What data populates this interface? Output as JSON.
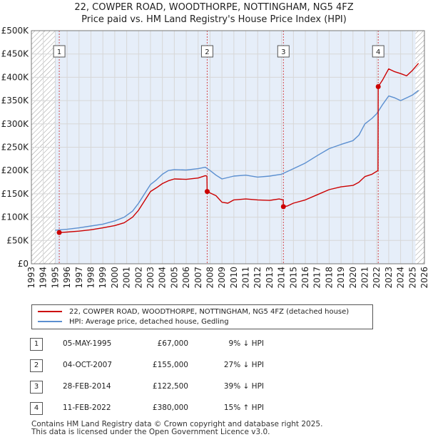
{
  "chart_data": {
    "type": "line",
    "title": [
      "22, COWPER ROAD, WOODTHORPE, NOTTINGHAM, NG5 4FZ",
      "Price paid vs. HM Land Registry's House Price Index (HPI)"
    ],
    "xlim": [
      1993,
      2026
    ],
    "ylim": [
      0,
      500000
    ],
    "x_ticks": [
      "1993",
      "1994",
      "1995",
      "1996",
      "1997",
      "1998",
      "1999",
      "2000",
      "2001",
      "2002",
      "2003",
      "2004",
      "2005",
      "2006",
      "2007",
      "2008",
      "2009",
      "2010",
      "2011",
      "2012",
      "2013",
      "2014",
      "2015",
      "2016",
      "2017",
      "2018",
      "2019",
      "2020",
      "2021",
      "2022",
      "2023",
      "2024",
      "2025",
      "2026"
    ],
    "y_ticks": [
      {
        "value": 0,
        "label": "£0"
      },
      {
        "value": 50000,
        "label": "£50K"
      },
      {
        "value": 100000,
        "label": "£100K"
      },
      {
        "value": 150000,
        "label": "£150K"
      },
      {
        "value": 200000,
        "label": "£200K"
      },
      {
        "value": 250000,
        "label": "£250K"
      },
      {
        "value": 300000,
        "label": "£300K"
      },
      {
        "value": 350000,
        "label": "£350K"
      },
      {
        "value": 400000,
        "label": "£400K"
      },
      {
        "value": 450000,
        "label": "£450K"
      },
      {
        "value": 500000,
        "label": "£500K"
      }
    ],
    "grid": true,
    "hatched_ranges": [
      [
        1993,
        1995.0
      ],
      [
        2025.25,
        2026
      ]
    ],
    "shaded_range": [
      1995.0,
      2025.25
    ],
    "series": [
      {
        "name": "22, COWPER ROAD, WOODTHORPE, NOTTINGHAM, NG5 4FZ (detached house)",
        "color": "#cc0000",
        "points": [
          [
            1995.34,
            67000
          ],
          [
            1996.0,
            68000
          ],
          [
            1997.0,
            70000
          ],
          [
            1998.0,
            73000
          ],
          [
            1999.0,
            77000
          ],
          [
            2000.0,
            82000
          ],
          [
            2000.8,
            88000
          ],
          [
            2001.5,
            100000
          ],
          [
            2002.0,
            115000
          ],
          [
            2002.5,
            135000
          ],
          [
            2003.0,
            155000
          ],
          [
            2003.5,
            163000
          ],
          [
            2004.0,
            172000
          ],
          [
            2004.5,
            178000
          ],
          [
            2005.0,
            182000
          ],
          [
            2006.0,
            181000
          ],
          [
            2007.0,
            184000
          ],
          [
            2007.6,
            189000
          ],
          [
            2007.74,
            188000
          ],
          [
            2007.76,
            155000
          ],
          [
            2008.0,
            152000
          ],
          [
            2008.5,
            146000
          ],
          [
            2009.0,
            132000
          ],
          [
            2009.5,
            130000
          ],
          [
            2010.0,
            137000
          ],
          [
            2011.0,
            139000
          ],
          [
            2012.0,
            137000
          ],
          [
            2013.0,
            136000
          ],
          [
            2013.8,
            139000
          ],
          [
            2014.14,
            137000
          ],
          [
            2014.16,
            122500
          ],
          [
            2014.5,
            124000
          ],
          [
            2015.0,
            130000
          ],
          [
            2016.0,
            137000
          ],
          [
            2017.0,
            148000
          ],
          [
            2018.0,
            159000
          ],
          [
            2019.0,
            165000
          ],
          [
            2020.0,
            168000
          ],
          [
            2020.5,
            175000
          ],
          [
            2021.0,
            187000
          ],
          [
            2021.6,
            192000
          ],
          [
            2022.1,
            200000
          ],
          [
            2022.12,
            380000
          ],
          [
            2022.5,
            395000
          ],
          [
            2023.0,
            418000
          ],
          [
            2023.5,
            412000
          ],
          [
            2024.0,
            408000
          ],
          [
            2024.5,
            403000
          ],
          [
            2025.0,
            415000
          ],
          [
            2025.5,
            430000
          ]
        ]
      },
      {
        "name": "HPI: Average price, detached house, Gedling",
        "color": "#5b8fd0",
        "points": [
          [
            1995.0,
            72000
          ],
          [
            1996.0,
            74000
          ],
          [
            1997.0,
            77000
          ],
          [
            1998.0,
            81000
          ],
          [
            1999.0,
            85000
          ],
          [
            2000.0,
            92000
          ],
          [
            2000.8,
            100000
          ],
          [
            2001.5,
            113000
          ],
          [
            2002.0,
            130000
          ],
          [
            2002.5,
            150000
          ],
          [
            2003.0,
            170000
          ],
          [
            2003.5,
            180000
          ],
          [
            2004.0,
            192000
          ],
          [
            2004.5,
            200000
          ],
          [
            2005.0,
            202000
          ],
          [
            2006.0,
            201000
          ],
          [
            2007.0,
            204000
          ],
          [
            2007.6,
            207000
          ],
          [
            2008.0,
            200000
          ],
          [
            2008.5,
            190000
          ],
          [
            2009.0,
            182000
          ],
          [
            2010.0,
            188000
          ],
          [
            2011.0,
            190000
          ],
          [
            2012.0,
            186000
          ],
          [
            2013.0,
            188000
          ],
          [
            2014.0,
            192000
          ],
          [
            2015.0,
            204000
          ],
          [
            2016.0,
            216000
          ],
          [
            2017.0,
            232000
          ],
          [
            2018.0,
            247000
          ],
          [
            2019.0,
            256000
          ],
          [
            2020.0,
            264000
          ],
          [
            2020.5,
            276000
          ],
          [
            2021.0,
            300000
          ],
          [
            2021.6,
            312000
          ],
          [
            2022.0,
            322000
          ],
          [
            2022.5,
            342000
          ],
          [
            2023.0,
            360000
          ],
          [
            2023.5,
            356000
          ],
          [
            2024.0,
            350000
          ],
          [
            2024.5,
            356000
          ],
          [
            2025.0,
            362000
          ],
          [
            2025.5,
            372000
          ]
        ]
      }
    ],
    "sales": [
      {
        "label": "1",
        "x": 1995.34,
        "value": 67000
      },
      {
        "label": "2",
        "x": 2007.76,
        "value": 155000
      },
      {
        "label": "3",
        "x": 2014.16,
        "value": 122500
      },
      {
        "label": "4",
        "x": 2022.12,
        "value": 380000
      }
    ],
    "marker_color": "#cc0000",
    "hpi_color": "#5b8fd0",
    "shade_color": "#e6eef9"
  },
  "legend": {
    "property": "22, COWPER ROAD, WOODTHORPE, NOTTINGHAM, NG5 4FZ (detached house)",
    "hpi": "HPI: Average price, detached house, Gedling"
  },
  "sales_table": [
    {
      "label": "1",
      "date": "05-MAY-1995",
      "price": "£67,000",
      "delta": "9% ↓ HPI"
    },
    {
      "label": "2",
      "date": "04-OCT-2007",
      "price": "£155,000",
      "delta": "27% ↓ HPI"
    },
    {
      "label": "3",
      "date": "28-FEB-2014",
      "price": "£122,500",
      "delta": "39% ↓ HPI"
    },
    {
      "label": "4",
      "date": "11-FEB-2022",
      "price": "£380,000",
      "delta": "15% ↑ HPI"
    }
  ],
  "footer": {
    "line1": "Contains HM Land Registry data © Crown copyright and database right 2025.",
    "line2": "This data is licensed under the Open Government Licence v3.0."
  }
}
